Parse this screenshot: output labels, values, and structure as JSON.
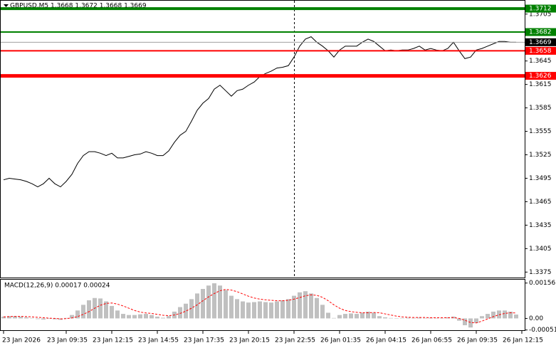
{
  "chart_data": [
    {
      "type": "line",
      "title": "GBPUSD,M5  1.3668 1.3672 1.3668 1.3669",
      "color": "#000000",
      "categories": [
        "23 Jan 2026",
        null,
        null,
        null,
        null,
        null,
        null,
        null,
        null,
        null,
        null,
        "23 Jan 09:35",
        null,
        null,
        null,
        null,
        null,
        null,
        null,
        "23 Jan 12:15",
        null,
        null,
        null,
        null,
        null,
        null,
        null,
        "23 Jan 14:55",
        null,
        null,
        null,
        null,
        null,
        null,
        null,
        "23 Jan 17:35",
        null,
        null,
        null,
        null,
        null,
        null,
        null,
        "23 Jan 20:15",
        null,
        null,
        null,
        null,
        null,
        null,
        null,
        "23 Jan 22:55",
        null,
        null,
        null,
        null,
        null,
        null,
        null,
        "26 Jan 01:35",
        null,
        null,
        null,
        null,
        null,
        null,
        null,
        "26 Jan 04:15",
        null,
        null,
        null,
        null,
        null,
        null,
        null,
        "26 Jan 06:55",
        null,
        null,
        null,
        null,
        null,
        null,
        null,
        "26 Jan 09:35",
        null,
        null,
        null,
        null,
        null,
        null,
        null,
        "26 Jan 12:15"
      ],
      "values": [
        1.3493,
        1.3495,
        1.3494,
        1.3493,
        1.3491,
        1.3488,
        1.3484,
        1.3488,
        1.3495,
        1.3488,
        1.3484,
        1.3491,
        1.35,
        1.3514,
        1.3524,
        1.3529,
        1.3529,
        1.3527,
        1.3524,
        1.3527,
        1.3521,
        1.3521,
        1.3523,
        1.3525,
        1.3526,
        1.3529,
        1.3527,
        1.3524,
        1.3524,
        1.353,
        1.3541,
        1.355,
        1.3555,
        1.3568,
        1.3582,
        1.3591,
        1.3597,
        1.3609,
        1.3614,
        1.3607,
        1.36,
        1.3607,
        1.3609,
        1.3614,
        1.3618,
        1.3625,
        1.3629,
        1.3632,
        1.3636,
        1.3637,
        1.3639,
        1.365,
        1.3664,
        1.3673,
        1.3676,
        1.3669,
        1.3664,
        1.3658,
        1.365,
        1.3659,
        1.3664,
        1.3664,
        1.3664,
        1.3669,
        1.3673,
        1.367,
        1.3664,
        1.3658,
        1.3659,
        1.3658,
        1.3659,
        1.3659,
        1.3661,
        1.3664,
        1.3659,
        1.3661,
        1.3659,
        1.3658,
        1.3661,
        1.3669,
        1.3658,
        1.3648,
        1.365,
        1.3659,
        1.3661,
        1.3664,
        1.3667,
        1.367,
        1.367,
        1.3669,
        1.3669,
        null
      ],
      "ylim": [
        1.3368,
        1.3723
      ],
      "yticks": [
        1.3705,
        1.3645,
        1.3615,
        1.3585,
        1.3555,
        1.3525,
        1.3495,
        1.3465,
        1.3435,
        1.3405,
        1.3375
      ],
      "levels": [
        {
          "value": 1.3712,
          "color": "#008000"
        },
        {
          "value": 1.3682,
          "color": "#008000"
        },
        {
          "value": 1.3669,
          "color": "#000000"
        },
        {
          "value": 1.3658,
          "color": "#ff0000"
        },
        {
          "value": 1.3626,
          "color": "#ff0000"
        }
      ]
    },
    {
      "type": "macd",
      "title": "MACD(12,26,9) 0.00017 0.00024",
      "ylim": [
        -0.00052,
        0.00174
      ],
      "yticks": [
        0.00156,
        {
          "value": 0,
          "label": "0.00"
        },
        -0.00051
      ],
      "series": [
        {
          "color": "#c0c0c0",
          "values": [
            8e-05,
            0.0001,
            0.0001,
            8e-05,
            5e-05,
            2e-05,
            -3e-05,
            -5e-05,
            -2e-05,
            -4e-05,
            -6e-05,
            2e-05,
            0.00015,
            0.00035,
            0.0006,
            0.0008,
            0.0009,
            0.00088,
            0.00075,
            0.00055,
            0.00035,
            0.0002,
            0.00015,
            0.00015,
            0.00018,
            0.0002,
            0.00015,
            8e-05,
            3e-05,
            0.0001,
            0.0003,
            0.0005,
            0.00065,
            0.00085,
            0.0011,
            0.0013,
            0.00145,
            0.00155,
            0.00145,
            0.00125,
            0.001,
            0.00085,
            0.00075,
            0.0007,
            0.00072,
            0.00075,
            0.00072,
            0.0007,
            0.00075,
            0.0008,
            0.00085,
            0.001,
            0.00115,
            0.0012,
            0.0011,
            0.0009,
            0.0006,
            0.00025,
            2e-05,
            0.00015,
            0.0002,
            0.00022,
            0.0002,
            0.00025,
            0.0003,
            0.00025,
            0.0001,
            5e-05,
            2e-05,
            0,
            2e-05,
            3e-05,
            2e-05,
            4e-05,
            2e-05,
            3e-05,
            2e-05,
            2e-05,
            5e-05,
            8e-05,
            -0.0001,
            -0.0003,
            -0.0004,
            -0.0002,
            0.0001,
            0.0002,
            0.0003,
            0.00035,
            0.00035,
            0.0003,
            0.00017
          ]
        },
        {
          "color": "#ff0000",
          "values": [
            7e-05,
            8e-05,
            9e-05,
            9e-05,
            8e-05,
            7e-05,
            5e-05,
            3e-05,
            1e-05,
            0,
            -2e-05,
            -1e-05,
            2e-05,
            8e-05,
            0.00018,
            0.0003,
            0.00045,
            0.00058,
            0.00066,
            0.00068,
            0.00063,
            0.00055,
            0.00045,
            0.00035,
            0.00028,
            0.00024,
            0.00022,
            0.00018,
            0.00014,
            0.00012,
            0.00015,
            0.00022,
            0.00032,
            0.00045,
            0.0006,
            0.00078,
            0.00095,
            0.0011,
            0.00122,
            0.00128,
            0.00125,
            0.00118,
            0.00108,
            0.00098,
            0.0009,
            0.00085,
            0.00082,
            0.0008,
            0.00078,
            0.00078,
            0.0008,
            0.00085,
            0.00092,
            0.001,
            0.00104,
            0.00102,
            0.00093,
            0.00078,
            0.0006,
            0.00045,
            0.00035,
            0.0003,
            0.00027,
            0.00025,
            0.00025,
            0.00026,
            0.00025,
            0.0002,
            0.00015,
            0.0001,
            7e-05,
            5e-05,
            4e-05,
            4e-05,
            4e-05,
            3e-05,
            3e-05,
            3e-05,
            3e-05,
            4e-05,
            0,
            -8e-05,
            -0.00018,
            -0.0002,
            -0.00012,
            -2e-05,
            8e-05,
            0.00016,
            0.00022,
            0.00025,
            0.00024
          ]
        }
      ]
    }
  ]
}
